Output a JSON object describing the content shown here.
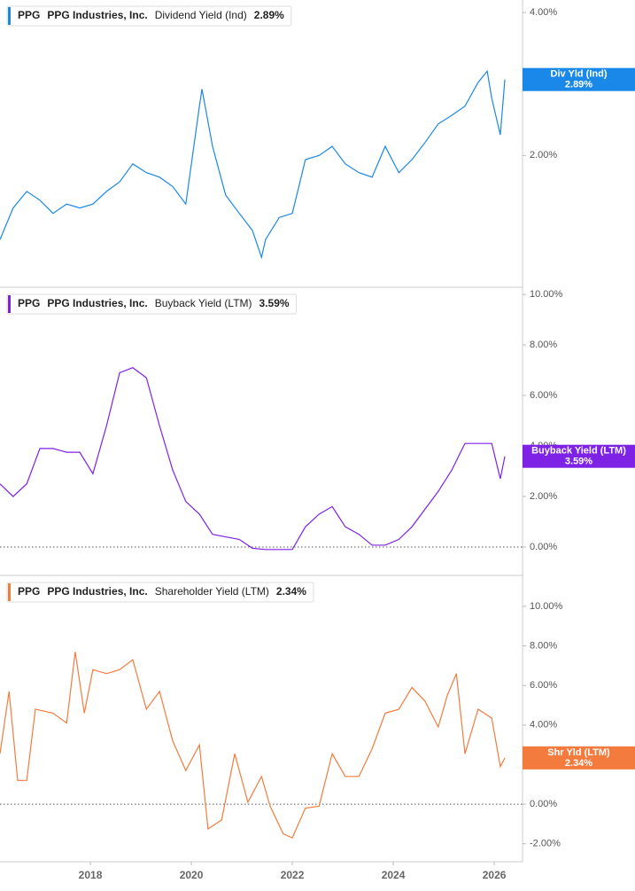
{
  "chart_data": [
    {
      "type": "line",
      "ticker": "PPG",
      "company": "PPG Industries, Inc.",
      "log_scale": true,
      "zero_line": false,
      "xlim": [
        2016.21,
        2026.56
      ],
      "ylim": [
        1.06,
        4.25
      ],
      "yticks": [
        {
          "value": 4,
          "label": "4.00%"
        },
        {
          "value": 2,
          "label": "2.00%"
        }
      ],
      "series": [
        {
          "name": "Dividend Yield (Ind)",
          "tag": "Div Yld (Ind)",
          "color": "#1a88e8",
          "last_label": "2.89%",
          "x": [
            2016.21,
            2016.47,
            2016.74,
            2017.0,
            2017.26,
            2017.53,
            2017.79,
            2018.05,
            2018.32,
            2018.58,
            2018.84,
            2019.11,
            2019.37,
            2019.63,
            2019.89,
            2020.16,
            2020.21,
            2020.42,
            2020.68,
            2020.95,
            2021.21,
            2021.39,
            2021.47,
            2021.74,
            2022.0,
            2022.26,
            2022.53,
            2022.79,
            2023.05,
            2023.32,
            2023.58,
            2023.84,
            2024.11,
            2024.37,
            2024.63,
            2024.89,
            2025.16,
            2025.42,
            2025.68,
            2025.86,
            2025.95,
            2026.12,
            2026.21
          ],
          "values": [
            1.33,
            1.55,
            1.68,
            1.61,
            1.51,
            1.58,
            1.55,
            1.58,
            1.68,
            1.76,
            1.92,
            1.84,
            1.8,
            1.72,
            1.58,
            2.54,
            2.76,
            2.09,
            1.65,
            1.51,
            1.39,
            1.22,
            1.33,
            1.48,
            1.51,
            1.96,
            2.0,
            2.09,
            1.92,
            1.84,
            1.8,
            2.09,
            1.84,
            1.96,
            2.13,
            2.33,
            2.43,
            2.54,
            2.85,
            3.01,
            2.64,
            2.21,
            2.89
          ]
        }
      ]
    },
    {
      "type": "line",
      "ticker": "PPG",
      "company": "PPG Industries, Inc.",
      "log_scale": false,
      "zero_line": true,
      "xlim": [
        2016.21,
        2026.56
      ],
      "ylim": [
        -1.09,
        10.25
      ],
      "yticks": [
        {
          "value": 10,
          "label": "10.00%"
        },
        {
          "value": 8,
          "label": "8.00%"
        },
        {
          "value": 6,
          "label": "6.00%"
        },
        {
          "value": 4,
          "label": "4.00%"
        },
        {
          "value": 2,
          "label": "2.00%"
        },
        {
          "value": 0,
          "label": "0.00%"
        }
      ],
      "series": [
        {
          "name": "Buyback Yield (LTM)",
          "tag": "Buyback Yield (LTM)",
          "color": "#7e22e6",
          "last_label": "3.59%",
          "x": [
            2016.21,
            2016.47,
            2016.74,
            2017.0,
            2017.26,
            2017.53,
            2017.79,
            2018.05,
            2018.32,
            2018.58,
            2018.84,
            2019.11,
            2019.37,
            2019.63,
            2019.89,
            2020.16,
            2020.42,
            2020.68,
            2020.95,
            2021.21,
            2021.47,
            2021.74,
            2022.0,
            2022.26,
            2022.53,
            2022.79,
            2023.05,
            2023.32,
            2023.58,
            2023.84,
            2024.11,
            2024.37,
            2024.63,
            2024.89,
            2025.16,
            2025.42,
            2025.68,
            2025.95,
            2026.12,
            2026.21
          ],
          "values": [
            2.5,
            2.0,
            2.5,
            3.9,
            3.9,
            3.75,
            3.75,
            2.9,
            4.8,
            6.9,
            7.1,
            6.7,
            4.8,
            3.05,
            1.8,
            1.3,
            0.5,
            0.4,
            0.3,
            -0.05,
            -0.1,
            -0.1,
            -0.1,
            0.8,
            1.3,
            1.6,
            0.8,
            0.5,
            0.07,
            0.07,
            0.3,
            0.8,
            1.5,
            2.2,
            3.05,
            4.1,
            4.1,
            4.1,
            2.7,
            3.59
          ]
        }
      ]
    },
    {
      "type": "line",
      "ticker": "PPG",
      "company": "PPG Industries, Inc.",
      "log_scale": false,
      "zero_line": true,
      "xlim": [
        2016.21,
        2026.56
      ],
      "ylim": [
        -2.91,
        11.52
      ],
      "xticks": [
        2018,
        2020,
        2022,
        2024,
        2026
      ],
      "yticks": [
        {
          "value": 10,
          "label": "10.00%"
        },
        {
          "value": 8,
          "label": "8.00%"
        },
        {
          "value": 6,
          "label": "6.00%"
        },
        {
          "value": 4,
          "label": "4.00%"
        },
        {
          "value": 2,
          "label": "2.00%"
        },
        {
          "value": 0,
          "label": "0.00%"
        },
        {
          "value": -2,
          "label": "-2.00%"
        }
      ],
      "series": [
        {
          "name": "Shareholder Yield (LTM)",
          "tag": "Shr Yld (LTM)",
          "color": "#f37b3d",
          "last_label": "2.34%",
          "x": [
            2016.21,
            2016.39,
            2016.56,
            2016.74,
            2016.91,
            2017.26,
            2017.53,
            2017.7,
            2017.88,
            2018.05,
            2018.32,
            2018.58,
            2018.84,
            2019.11,
            2019.37,
            2019.63,
            2019.89,
            2020.16,
            2020.33,
            2020.6,
            2020.86,
            2021.12,
            2021.39,
            2021.56,
            2021.82,
            2022.0,
            2022.26,
            2022.53,
            2022.79,
            2023.05,
            2023.32,
            2023.58,
            2023.84,
            2024.11,
            2024.37,
            2024.63,
            2024.89,
            2025.07,
            2025.25,
            2025.42,
            2025.68,
            2025.95,
            2026.12,
            2026.21
          ],
          "values": [
            2.55,
            5.7,
            1.2,
            1.2,
            4.8,
            4.6,
            4.1,
            7.7,
            4.6,
            6.8,
            6.6,
            6.8,
            7.3,
            4.8,
            5.7,
            3.2,
            1.7,
            3.0,
            -1.25,
            -0.8,
            2.55,
            0.1,
            1.4,
            -0.1,
            -1.5,
            -1.7,
            -0.2,
            -0.1,
            2.55,
            1.4,
            1.4,
            2.8,
            4.6,
            4.8,
            5.9,
            5.2,
            3.9,
            5.5,
            6.6,
            2.55,
            4.8,
            4.35,
            1.9,
            2.34
          ]
        }
      ]
    }
  ]
}
